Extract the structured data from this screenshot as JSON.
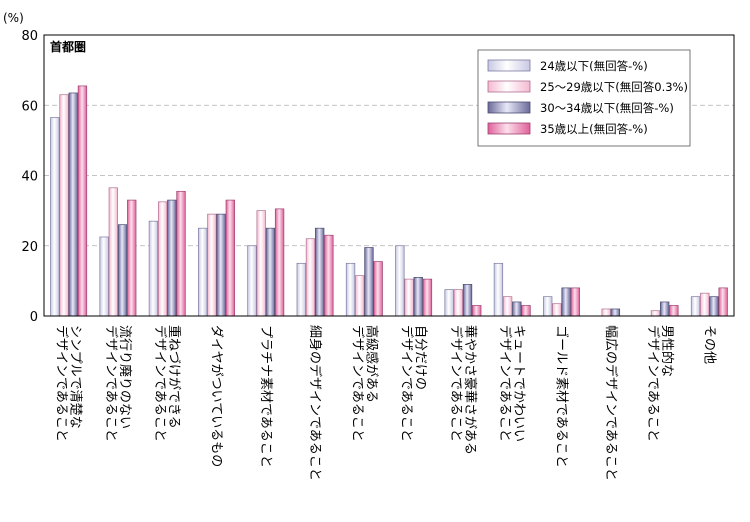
{
  "chart_data": {
    "type": "bar",
    "unit_label": "(%)",
    "region_label": "首都圏",
    "ylim": [
      0,
      80
    ],
    "yticks": [
      0,
      20,
      40,
      60,
      80
    ],
    "grid": true,
    "legend_position": "top-right",
    "categories": [
      [
        "シンプルで清楚な",
        "デザインであること"
      ],
      [
        "流行り廃りのない",
        "デザインであること"
      ],
      [
        "重ねづけができる",
        "デザインであること"
      ],
      [
        "ダイヤがついているもの"
      ],
      [
        "プラチナ素材であること"
      ],
      [
        "細身のデザインであること"
      ],
      [
        "高級感がある",
        "デザインであること"
      ],
      [
        "自分だけの",
        "デザインであること"
      ],
      [
        "華やかさ豪華さがある",
        "デザインであること"
      ],
      [
        "キュートでかわいい",
        "デザインであること"
      ],
      [
        "ゴールド素材であること"
      ],
      [
        "幅広のデザインであること"
      ],
      [
        "男性的な",
        "デザインであること"
      ],
      [
        "その他"
      ]
    ],
    "series": [
      {
        "name": "24歳以下(無回答-%)",
        "color_light": "#ffffff",
        "color_dark": "#c8c8e4",
        "stroke": "#7a7aa0",
        "values": [
          56.5,
          22.5,
          27.0,
          25.0,
          20.0,
          15.0,
          15.0,
          20.0,
          7.5,
          15.0,
          5.5,
          0,
          0,
          5.5
        ]
      },
      {
        "name": "25〜29歳以下(無回答0.3%)",
        "color_light": "#ffffff",
        "color_dark": "#f4b8d0",
        "stroke": "#b07090",
        "values": [
          63.0,
          36.5,
          32.5,
          29.0,
          30.0,
          22.0,
          11.5,
          10.5,
          7.5,
          5.5,
          3.5,
          2.0,
          1.5,
          6.5
        ]
      },
      {
        "name": "30〜34歳以下(無回答-%)",
        "color_light": "#e8e8f8",
        "color_dark": "#6a6a9a",
        "stroke": "#4a4a70",
        "values": [
          63.5,
          26.0,
          33.0,
          29.0,
          25.0,
          25.0,
          19.5,
          11.0,
          9.0,
          4.0,
          8.0,
          2.0,
          4.0,
          5.5
        ]
      },
      {
        "name": "35歳以上(無回答-%)",
        "color_light": "#fbe0ec",
        "color_dark": "#e0609a",
        "stroke": "#a04070",
        "values": [
          65.5,
          33.0,
          35.5,
          33.0,
          30.5,
          23.0,
          15.5,
          10.5,
          3.0,
          3.0,
          8.0,
          0,
          3.0,
          8.0
        ]
      }
    ]
  }
}
